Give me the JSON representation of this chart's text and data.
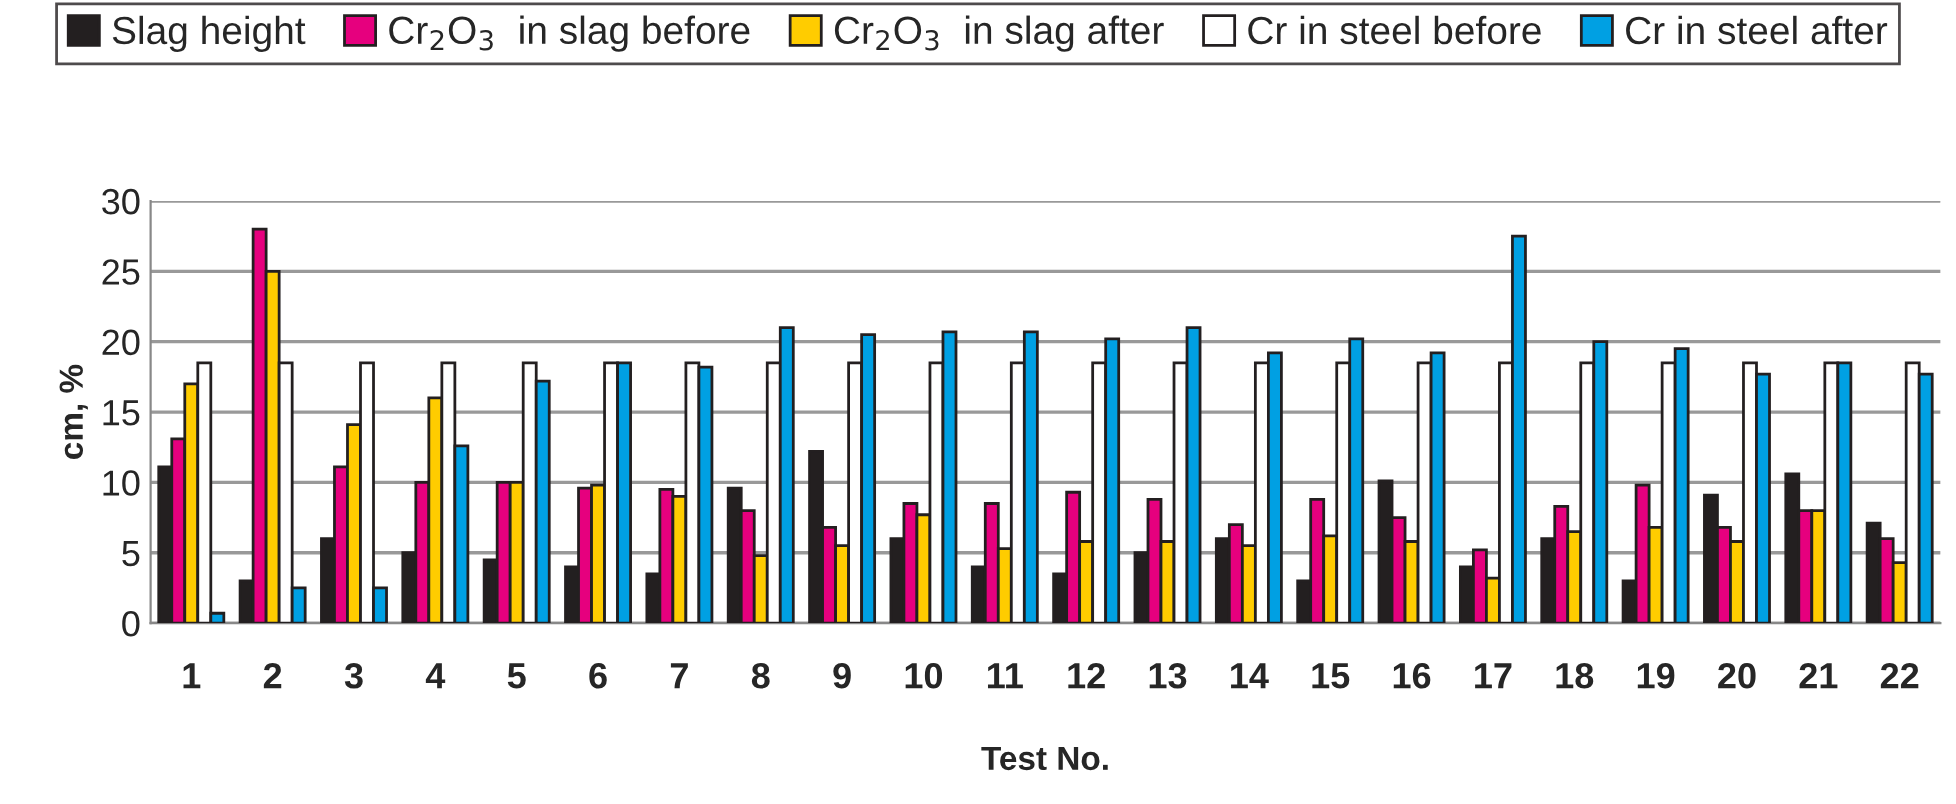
{
  "chart_data": {
    "type": "bar",
    "xlabel": "Test No.",
    "ylabel": "cm, %",
    "categories": [
      "1",
      "2",
      "3",
      "4",
      "5",
      "6",
      "7",
      "8",
      "9",
      "10",
      "11",
      "12",
      "13",
      "14",
      "15",
      "16",
      "17",
      "18",
      "19",
      "20",
      "21",
      "22"
    ],
    "series": [
      {
        "name": "Slag height",
        "color": "#231f20",
        "values": [
          11.1,
          3,
          6,
          5,
          4.5,
          4,
          3.5,
          9.6,
          12.2,
          6,
          4,
          3.5,
          5,
          6,
          3,
          10.1,
          4,
          6,
          3,
          9.1,
          10.6,
          7.1
        ]
      },
      {
        "name": "Cr$_{2}$O$_{3}$  in slag before",
        "color": "#e6007e",
        "values": [
          13.1,
          28,
          11.1,
          10,
          10,
          9.6,
          9.5,
          8,
          6.8,
          8.5,
          8.5,
          9.3,
          8.8,
          7,
          8.8,
          7.5,
          5.2,
          8.3,
          9.8,
          6.8,
          8,
          6
        ]
      },
      {
        "name": "Cr$_{2}$O$_{3}$  in slag after",
        "color": "#ffcc00",
        "values": [
          17,
          25,
          14.1,
          16,
          10,
          9.8,
          9,
          4.8,
          5.5,
          7.7,
          5.3,
          5.8,
          5.8,
          5.5,
          6.2,
          5.8,
          3.2,
          6.5,
          6.8,
          5.8,
          8,
          4.3
        ]
      },
      {
        "name": "Cr in steel before",
        "color": "#ffffff",
        "values": [
          18.5,
          18.5,
          18.5,
          18.5,
          18.5,
          18.5,
          18.5,
          18.5,
          18.5,
          18.5,
          18.5,
          18.5,
          18.5,
          18.5,
          18.5,
          18.5,
          18.5,
          18.5,
          18.5,
          18.5,
          18.5,
          18.5
        ]
      },
      {
        "name": "Cr in steel after",
        "color": "#00a0e3",
        "values": [
          0.7,
          2.5,
          2.5,
          12.6,
          17.2,
          18.5,
          18.2,
          21,
          20.5,
          20.7,
          20.7,
          20.2,
          21,
          19.2,
          20.2,
          19.2,
          27.5,
          20,
          19.5,
          17.7,
          18.5,
          17.7
        ]
      }
    ],
    "ylim": [
      0,
      30
    ],
    "yticks": [
      0,
      5,
      10,
      15,
      20,
      25,
      30
    ],
    "grid": "y",
    "legend": "top"
  }
}
